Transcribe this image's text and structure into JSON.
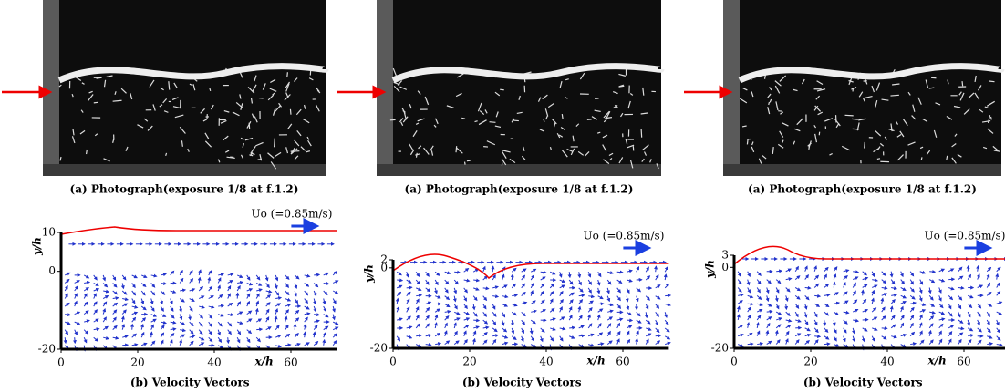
{
  "panels": [
    {
      "photo_caption": "(a) Photograph(exposure 1/8 at f.1.2)",
      "velocity": {
        "annotation": "Uo (=0.85m/s)",
        "y_label": "y/h",
        "x_label": "x/h",
        "ylim": [
          -20,
          10
        ],
        "yticks": [
          10,
          0,
          -20
        ],
        "xlim": [
          0,
          72
        ],
        "xticks": [
          0,
          20,
          40,
          60
        ]
      },
      "vectors_caption": "(b) Velocity Vectors"
    },
    {
      "photo_caption": "(a) Photograph(exposure 1/8 at f.1.2)",
      "velocity": {
        "annotation": "Uo (=0.85m/s)",
        "y_label": "y/h",
        "x_label": "x/h",
        "ylim": [
          -20,
          2
        ],
        "yticks": [
          2,
          0,
          -20
        ],
        "xlim": [
          0,
          72
        ],
        "xticks": [
          0,
          20,
          40,
          60
        ]
      },
      "vectors_caption": "(b) Velocity Vectors"
    },
    {
      "photo_caption": "(a) Photograph(exposure 1/8 at f.1.2)",
      "velocity": {
        "annotation": "Uo (=0.85m/s)",
        "y_label": "y/h",
        "x_label": "x/h",
        "ylim": [
          -20,
          3
        ],
        "yticks": [
          3,
          0,
          -20
        ],
        "xlim": [
          0,
          72
        ],
        "xticks": [
          0,
          20,
          40,
          60
        ]
      },
      "vectors_caption": "(b) Velocity Vectors"
    }
  ]
}
